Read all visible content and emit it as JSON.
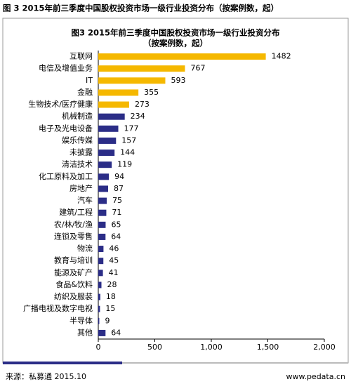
{
  "header": "图 3 2015年前三季度中国股权投资市场一级行业投资分布（按案例数，起）",
  "chart_data": {
    "type": "bar",
    "orientation": "horizontal",
    "title": "图3 2015年前三季度中国股权投资市场一级行业投资分布",
    "subtitle": "（按案例数，起）",
    "categories": [
      "互联网",
      "电信及增值业务",
      "IT",
      "金融",
      "生物技术/医疗健康",
      "机械制造",
      "电子及光电设备",
      "娱乐传媒",
      "未披露",
      "清洁技术",
      "化工原料及加工",
      "房地产",
      "汽车",
      "建筑/工程",
      "农/林/牧/渔",
      "连锁及零售",
      "物流",
      "教育与培训",
      "能源及矿产",
      "食品&饮料",
      "纺织及服装",
      "广播电视及数字电视",
      "半导体",
      "其他"
    ],
    "values": [
      1482,
      767,
      593,
      355,
      273,
      234,
      177,
      157,
      144,
      119,
      94,
      87,
      75,
      71,
      65,
      64,
      46,
      45,
      41,
      28,
      18,
      15,
      9,
      64
    ],
    "colors": [
      "#f5b800",
      "#f5b800",
      "#f5b800",
      "#f5b800",
      "#f5b800",
      "#2b2d87",
      "#2b2d87",
      "#2b2d87",
      "#2b2d87",
      "#2b2d87",
      "#2b2d87",
      "#2b2d87",
      "#2b2d87",
      "#2b2d87",
      "#2b2d87",
      "#2b2d87",
      "#2b2d87",
      "#2b2d87",
      "#2b2d87",
      "#2b2d87",
      "#2b2d87",
      "#2b2d87",
      "#2b2d87",
      "#2b2d87"
    ],
    "xlim": [
      0,
      2000
    ],
    "xticks": [
      0,
      500,
      {
        "value": 1000,
        "label": "1,000"
      },
      {
        "value": 1500,
        "label": "1,500"
      },
      {
        "value": 2000,
        "label": "2,000"
      }
    ],
    "grid": false
  },
  "footer": {
    "source": "来源：私募通 2015.10",
    "url": "www.pedata.cn"
  }
}
